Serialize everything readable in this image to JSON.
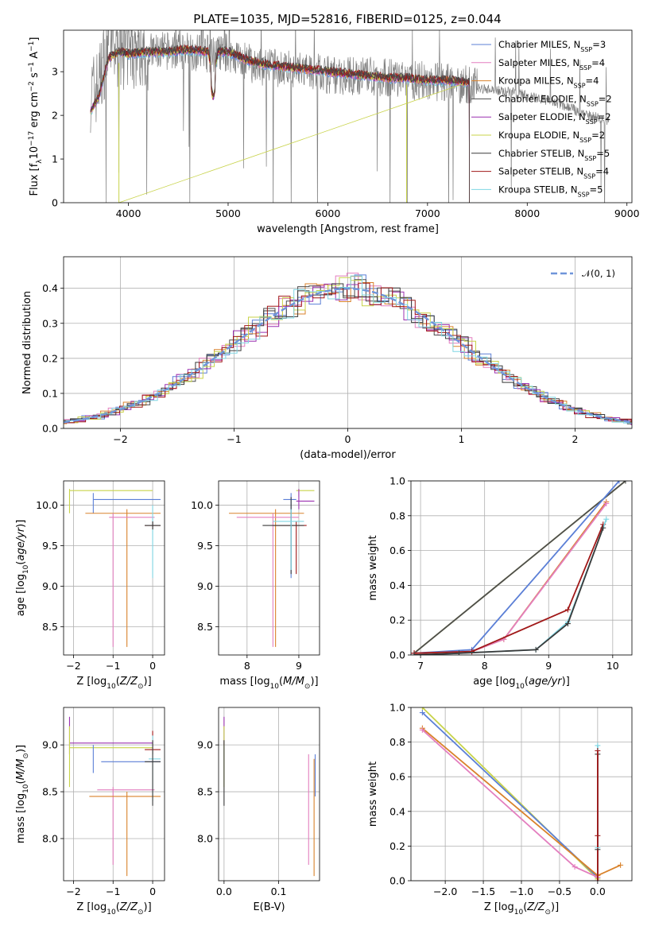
{
  "title": "PLATE=1035, MJD=52816, FIBERID=0125, z=0.044",
  "colors": {
    "chabrier_miles": "#5b7fd6",
    "salpeter_miles": "#e37fbf",
    "kroupa_miles": "#d9822b",
    "chabrier_elodie": "#4d4d4d",
    "salpeter_elodie": "#9b30b0",
    "kroupa_elodie": "#c8d34a",
    "chabrier_stelib": "#3a3a3a",
    "salpeter_stelib": "#a01818",
    "kroupa_stelib": "#7fd6e3",
    "data": "#7f7f7f",
    "normal": "#6f95da"
  },
  "legend1": [
    {
      "label": "Chabrier MILES, N",
      "sub": "SSP",
      "tail": "=3",
      "color": "#5b7fd6"
    },
    {
      "label": "Salpeter MILES, N",
      "sub": "SSP",
      "tail": "=4",
      "color": "#e37fbf"
    },
    {
      "label": "Kroupa MILES, N",
      "sub": "SSP",
      "tail": "=4",
      "color": "#d9822b"
    },
    {
      "label": "Chabrier ELODIE, N",
      "sub": "SSP",
      "tail": "=2",
      "color": "#4d4d4d"
    },
    {
      "label": "Salpeter ELODIE, N",
      "sub": "SSP",
      "tail": "=2",
      "color": "#9b30b0"
    },
    {
      "label": "Kroupa ELODIE, N",
      "sub": "SSP",
      "tail": "=2",
      "color": "#c8d34a"
    },
    {
      "label": "Chabrier STELIB, N",
      "sub": "SSP",
      "tail": "=5",
      "color": "#3a3a3a"
    },
    {
      "label": "Salpeter STELIB, N",
      "sub": "SSP",
      "tail": "=4",
      "color": "#a01818"
    },
    {
      "label": "Kroupa STELIB, N",
      "sub": "SSP",
      "tail": "=5",
      "color": "#7fd6e3"
    }
  ],
  "legend2": {
    "label": "𝒩(0, 1)",
    "color": "#6f95da"
  },
  "chart_data": [
    {
      "id": "spectrum",
      "type": "line",
      "xlabel": "wavelength [Angstrom, rest frame]",
      "ylabel": "Flux [f",
      "xlim": [
        3350,
        9050
      ],
      "ylim": [
        0,
        3.95
      ],
      "xticks": [
        4000,
        5000,
        6000,
        7000,
        8000,
        9000
      ],
      "yticks": [
        0,
        1,
        2,
        3
      ],
      "grid": false,
      "legend_position": "right",
      "series": [
        {
          "name": "data",
          "x": [
            3620,
            3700,
            3750,
            3800,
            3900,
            4000,
            4100,
            4200,
            4300,
            4500,
            4700,
            4900,
            5000,
            5200,
            5400,
            5600,
            5800,
            6000,
            6200,
            6400,
            6600,
            6800,
            7000,
            7200,
            7400,
            7600,
            7800,
            8000,
            8200,
            8400,
            8600,
            8800
          ],
          "y": [
            2.5,
            2.7,
            3.2,
            3.6,
            3.5,
            3.45,
            3.5,
            3.45,
            3.45,
            3.5,
            3.45,
            3.4,
            3.45,
            3.2,
            3.1,
            3.05,
            3.0,
            2.95,
            2.9,
            2.9,
            2.85,
            2.8,
            2.8,
            2.75,
            2.7,
            2.6,
            2.55,
            2.45,
            2.35,
            2.2,
            2.0,
            1.9
          ]
        },
        {
          "name": "model",
          "x": [
            3620,
            3700,
            3800,
            3900,
            4000,
            4200,
            4400,
            4600,
            4800,
            4850,
            4900,
            5000,
            5200,
            5400,
            5600,
            5800,
            6000,
            6200,
            6400,
            6600,
            6800,
            7000,
            7200,
            7420
          ],
          "y": [
            2.1,
            2.4,
            3.3,
            3.45,
            3.4,
            3.45,
            3.45,
            3.5,
            3.45,
            2.9,
            3.45,
            3.45,
            3.25,
            3.15,
            3.1,
            3.05,
            3.0,
            2.95,
            2.9,
            2.85,
            2.85,
            2.8,
            2.8,
            2.75
          ]
        }
      ]
    },
    {
      "id": "residuals",
      "type": "bar",
      "xlabel": "(data-model)/error",
      "ylabel": "Normed distribution",
      "xlim": [
        -2.5,
        2.5
      ],
      "ylim": [
        0,
        0.49
      ],
      "xticks": [
        -2,
        -1,
        0,
        1,
        2
      ],
      "yticks": [
        0.0,
        0.1,
        0.2,
        0.3,
        0.4
      ],
      "grid": true,
      "legend_position": "top-right",
      "bin_width": 0.1,
      "normal": {
        "mu": 0,
        "sigma": 1
      }
    },
    {
      "id": "age-vs-Z",
      "type": "scatter",
      "xlabel": "Z [log",
      "ylabel": "age  [log",
      "xlim": [
        -2.25,
        0.3
      ],
      "ylim": [
        8.15,
        10.3
      ],
      "xticks": [
        -2,
        -1,
        0
      ],
      "yticks": [
        8.5,
        9.0,
        9.5,
        10.0
      ],
      "grid": true
    },
    {
      "id": "age-vs-mass",
      "type": "scatter",
      "xlabel": "mass [log",
      "xlim": [
        7.45,
        9.4
      ],
      "ylim": [
        8.15,
        10.3
      ],
      "xticks": [
        8,
        9
      ],
      "yticks": [
        8.5,
        9.0,
        9.5,
        10.0
      ],
      "grid": true
    },
    {
      "id": "cum-mass-vs-age",
      "type": "line",
      "xlabel": "age  [log",
      "ylabel": "mass weight",
      "xlim": [
        6.85,
        10.3
      ],
      "ylim": [
        0,
        1.0
      ],
      "xticks": [
        7,
        8,
        9,
        10
      ],
      "yticks": [
        0.0,
        0.2,
        0.4,
        0.6,
        0.8,
        1.0
      ],
      "grid": true,
      "series": [
        {
          "name": "Kroupa ELODIE",
          "x": [
            6.9,
            10.2
          ],
          "y": [
            0.01,
            1.0
          ]
        },
        {
          "name": "Chabrier ELODIE",
          "x": [
            6.9,
            10.2
          ],
          "y": [
            0.01,
            1.0
          ]
        },
        {
          "name": "Chabrier MILES",
          "x": [
            6.9,
            7.8,
            10.1
          ],
          "y": [
            0.01,
            0.03,
            1.0
          ]
        },
        {
          "name": "Kroupa MILES",
          "x": [
            6.9,
            7.8,
            8.3,
            9.9
          ],
          "y": [
            0.01,
            0.02,
            0.09,
            0.88
          ]
        },
        {
          "name": "Salpeter MILES",
          "x": [
            6.9,
            7.8,
            8.3,
            9.9
          ],
          "y": [
            0.01,
            0.02,
            0.09,
            0.87
          ]
        },
        {
          "name": "Salpeter STELIB",
          "x": [
            6.9,
            7.8,
            9.3,
            9.85
          ],
          "y": [
            0.01,
            0.02,
            0.26,
            0.75
          ]
        },
        {
          "name": "Kroupa STELIB",
          "x": [
            6.9,
            7.6,
            8.8,
            9.3,
            9.9
          ],
          "y": [
            0.0,
            0.01,
            0.03,
            0.19,
            0.78
          ]
        },
        {
          "name": "Chabrier STELIB",
          "x": [
            6.9,
            7.6,
            8.8,
            9.3,
            9.85
          ],
          "y": [
            0.0,
            0.01,
            0.03,
            0.18,
            0.73
          ]
        }
      ]
    },
    {
      "id": "mass-vs-Z",
      "type": "scatter",
      "xlabel": "Z [log",
      "ylabel": "mass [log",
      "xlim": [
        -2.25,
        0.3
      ],
      "ylim": [
        7.55,
        9.4
      ],
      "xticks": [
        -2,
        -1,
        0
      ],
      "yticks": [
        8.0,
        8.5,
        9.0
      ],
      "grid": true
    },
    {
      "id": "mass-vs-ebv",
      "type": "scatter",
      "xlabel": "E(B-V)",
      "xlim": [
        -0.01,
        0.175
      ],
      "ylim": [
        7.55,
        9.4
      ],
      "xticks": [
        0.0,
        0.1
      ],
      "yticks": [
        8.0,
        8.5,
        9.0
      ],
      "grid": true
    },
    {
      "id": "cum-mass-vs-Z",
      "type": "line",
      "xlabel": "Z [log",
      "ylabel": "mass weight",
      "xlim": [
        -2.45,
        0.45
      ],
      "ylim": [
        0,
        1.0
      ],
      "xticks": [
        -2.0,
        -1.5,
        -1.0,
        -0.5,
        0.0
      ],
      "yticks": [
        0.0,
        0.2,
        0.4,
        0.6,
        0.8,
        1.0
      ],
      "grid": true,
      "series": [
        {
          "name": "Kroupa ELODIE",
          "x": [
            -2.3,
            0.0
          ],
          "y": [
            1.0,
            0.01
          ]
        },
        {
          "name": "Chabrier MILES",
          "x": [
            -2.3,
            0.0
          ],
          "y": [
            0.97,
            0.02
          ]
        },
        {
          "name": "Kroupa MILES",
          "x": [
            -2.3,
            0.0,
            0.3
          ],
          "y": [
            0.88,
            0.03,
            0.09
          ]
        },
        {
          "name": "Salpeter MILES",
          "x": [
            -2.3,
            -0.3,
            0.0
          ],
          "y": [
            0.87,
            0.08,
            0.02
          ]
        },
        {
          "name": "Kroupa STELIB",
          "x": [
            0.0,
            0.0
          ],
          "y": [
            0.0,
            0.78
          ]
        },
        {
          "name": "Chabrier STELIB",
          "x": [
            0.0,
            0.0
          ],
          "y": [
            0.0,
            0.73
          ]
        },
        {
          "name": "Salpeter STELIB",
          "x": [
            0.0,
            0.0
          ],
          "y": [
            0.0,
            0.75
          ]
        }
      ]
    }
  ]
}
